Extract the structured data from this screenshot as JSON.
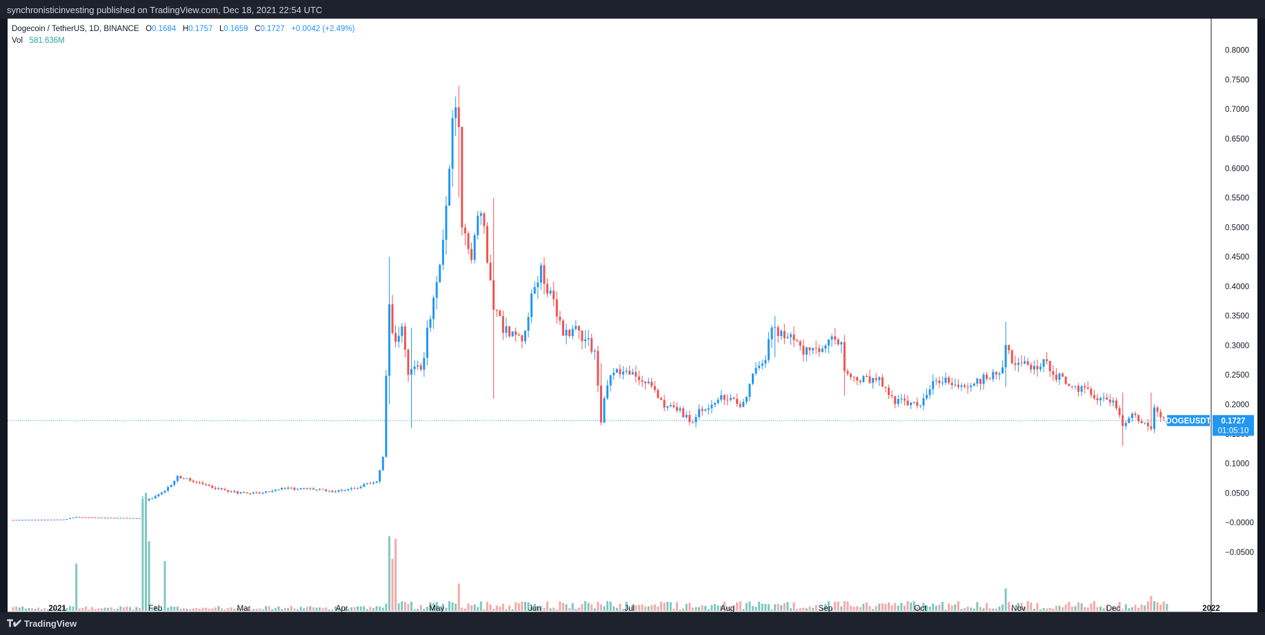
{
  "header": {
    "attribution": "synchronisticinvesting published on TradingView.com, Dec 18, 2021 22:54 UTC"
  },
  "legend": {
    "symbol": "Dogecoin / TetherUS, 1D, BINANCE",
    "open_label": "O",
    "open": "0.1684",
    "high_label": "H",
    "high": "0.1757",
    "low_label": "L",
    "low": "0.1659",
    "close_label": "C",
    "close": "0.1727",
    "change": "+0.0042 (+2.49%)",
    "vol_label": "Vol",
    "vol": "581.636M"
  },
  "price_tag": {
    "ticker": "DOGEUSDT",
    "price": "0.1727",
    "countdown": "01:05:10"
  },
  "footer": {
    "logo_text": "TradingView"
  },
  "colors": {
    "up": "#26a69a",
    "up_candle": "#2196f3",
    "down": "#ef5350",
    "up_volume": "#7fc8c0",
    "down_volume": "#f4a9a8",
    "last_price": "#2196f3",
    "background": "#ffffff",
    "frame": "#131722"
  },
  "chart_data": {
    "type": "candlestick",
    "interval": "1D",
    "symbol": "DOGEUSDT",
    "y_axis": {
      "min": -0.07,
      "max": 0.83,
      "ticks": [
        0.8,
        0.75,
        0.7,
        0.65,
        0.6,
        0.55,
        0.5,
        0.45,
        0.4,
        0.35,
        0.3,
        0.25,
        0.2,
        0.15,
        0.1,
        0.05,
        0.0,
        -0.05
      ],
      "tick_labels": [
        "0.8000",
        "0.7500",
        "0.7000",
        "0.6500",
        "0.6000",
        "0.5500",
        "0.5000",
        "0.4500",
        "0.4000",
        "0.3500",
        "0.3000",
        "0.2500",
        "0.2000",
        "0.1500",
        "0.1000",
        "0.0500",
        "−0.0000",
        "−0.0500"
      ]
    },
    "x_axis": {
      "start": "2020-12-18",
      "end": "2022-01-01",
      "labels": [
        {
          "date": "2021-01-01",
          "text": "2021"
        },
        {
          "date": "2021-02-01",
          "text": "Feb"
        },
        {
          "date": "2021-03-01",
          "text": "Mar"
        },
        {
          "date": "2021-04-01",
          "text": "Apr"
        },
        {
          "date": "2021-05-01",
          "text": "May"
        },
        {
          "date": "2021-06-01",
          "text": "Jun"
        },
        {
          "date": "2021-07-01",
          "text": "Jul"
        },
        {
          "date": "2021-08-01",
          "text": "Aug"
        },
        {
          "date": "2021-09-01",
          "text": "Sep"
        },
        {
          "date": "2021-10-01",
          "text": "Oct"
        },
        {
          "date": "2021-11-01",
          "text": "Nov"
        },
        {
          "date": "2021-12-01",
          "text": "Dec"
        },
        {
          "date": "2022-01-01",
          "text": "2022"
        }
      ]
    },
    "last_price": 0.1727,
    "grid": false,
    "series_close_path": [
      {
        "date": "2020-12-18",
        "close": 0.0045
      },
      {
        "date": "2020-12-27",
        "close": 0.0048
      },
      {
        "date": "2021-01-03",
        "close": 0.0052
      },
      {
        "date": "2021-01-07",
        "close": 0.0095
      },
      {
        "date": "2021-01-15",
        "close": 0.0082
      },
      {
        "date": "2021-01-27",
        "close": 0.0074
      },
      {
        "date": "2021-01-28",
        "close": 0.032
      },
      {
        "date": "2021-01-29",
        "close": 0.038
      },
      {
        "date": "2021-02-04",
        "close": 0.053
      },
      {
        "date": "2021-02-08",
        "close": 0.078
      },
      {
        "date": "2021-02-12",
        "close": 0.071
      },
      {
        "date": "2021-02-20",
        "close": 0.058
      },
      {
        "date": "2021-02-27",
        "close": 0.051
      },
      {
        "date": "2021-03-06",
        "close": 0.05
      },
      {
        "date": "2021-03-14",
        "close": 0.058
      },
      {
        "date": "2021-03-22",
        "close": 0.057
      },
      {
        "date": "2021-03-30",
        "close": 0.053
      },
      {
        "date": "2021-04-06",
        "close": 0.06
      },
      {
        "date": "2021-04-12",
        "close": 0.07
      },
      {
        "date": "2021-04-14",
        "close": 0.11
      },
      {
        "date": "2021-04-16",
        "close": 0.37
      },
      {
        "date": "2021-04-18",
        "close": 0.3
      },
      {
        "date": "2021-04-20",
        "close": 0.34
      },
      {
        "date": "2021-04-22",
        "close": 0.25
      },
      {
        "date": "2021-04-24",
        "close": 0.27
      },
      {
        "date": "2021-04-26",
        "close": 0.26
      },
      {
        "date": "2021-04-28",
        "close": 0.32
      },
      {
        "date": "2021-05-01",
        "close": 0.4
      },
      {
        "date": "2021-05-04",
        "close": 0.53
      },
      {
        "date": "2021-05-06",
        "close": 0.67
      },
      {
        "date": "2021-05-07",
        "close": 0.69
      },
      {
        "date": "2021-05-08",
        "close": 0.65
      },
      {
        "date": "2021-05-09",
        "close": 0.5
      },
      {
        "date": "2021-05-12",
        "close": 0.45
      },
      {
        "date": "2021-05-14",
        "close": 0.52
      },
      {
        "date": "2021-05-16",
        "close": 0.5
      },
      {
        "date": "2021-05-19",
        "close": 0.37
      },
      {
        "date": "2021-05-22",
        "close": 0.33
      },
      {
        "date": "2021-05-25",
        "close": 0.32
      },
      {
        "date": "2021-05-28",
        "close": 0.31
      },
      {
        "date": "2021-06-01",
        "close": 0.4
      },
      {
        "date": "2021-06-03",
        "close": 0.43
      },
      {
        "date": "2021-06-06",
        "close": 0.38
      },
      {
        "date": "2021-06-10",
        "close": 0.32
      },
      {
        "date": "2021-06-14",
        "close": 0.33
      },
      {
        "date": "2021-06-18",
        "close": 0.31
      },
      {
        "date": "2021-06-20",
        "close": 0.29
      },
      {
        "date": "2021-06-22",
        "close": 0.17
      },
      {
        "date": "2021-06-24",
        "close": 0.24
      },
      {
        "date": "2021-06-27",
        "close": 0.26
      },
      {
        "date": "2021-07-02",
        "close": 0.25
      },
      {
        "date": "2021-07-08",
        "close": 0.23
      },
      {
        "date": "2021-07-12",
        "close": 0.2
      },
      {
        "date": "2021-07-17",
        "close": 0.19
      },
      {
        "date": "2021-07-20",
        "close": 0.17
      },
      {
        "date": "2021-07-24",
        "close": 0.19
      },
      {
        "date": "2021-07-30",
        "close": 0.21
      },
      {
        "date": "2021-08-06",
        "close": 0.2
      },
      {
        "date": "2021-08-09",
        "close": 0.25
      },
      {
        "date": "2021-08-13",
        "close": 0.28
      },
      {
        "date": "2021-08-15",
        "close": 0.33
      },
      {
        "date": "2021-08-17",
        "close": 0.31
      },
      {
        "date": "2021-08-20",
        "close": 0.32
      },
      {
        "date": "2021-08-25",
        "close": 0.29
      },
      {
        "date": "2021-08-30",
        "close": 0.29
      },
      {
        "date": "2021-09-03",
        "close": 0.31
      },
      {
        "date": "2021-09-06",
        "close": 0.3
      },
      {
        "date": "2021-09-07",
        "close": 0.25
      },
      {
        "date": "2021-09-12",
        "close": 0.24
      },
      {
        "date": "2021-09-18",
        "close": 0.24
      },
      {
        "date": "2021-09-22",
        "close": 0.21
      },
      {
        "date": "2021-09-28",
        "close": 0.2
      },
      {
        "date": "2021-10-01",
        "close": 0.2
      },
      {
        "date": "2021-10-06",
        "close": 0.24
      },
      {
        "date": "2021-10-10",
        "close": 0.24
      },
      {
        "date": "2021-10-14",
        "close": 0.23
      },
      {
        "date": "2021-10-20",
        "close": 0.24
      },
      {
        "date": "2021-10-24",
        "close": 0.25
      },
      {
        "date": "2021-10-27",
        "close": 0.26
      },
      {
        "date": "2021-10-28",
        "close": 0.3
      },
      {
        "date": "2021-10-31",
        "close": 0.27
      },
      {
        "date": "2021-11-05",
        "close": 0.26
      },
      {
        "date": "2021-11-09",
        "close": 0.27
      },
      {
        "date": "2021-11-13",
        "close": 0.25
      },
      {
        "date": "2021-11-18",
        "close": 0.23
      },
      {
        "date": "2021-11-23",
        "close": 0.22
      },
      {
        "date": "2021-11-27",
        "close": 0.21
      },
      {
        "date": "2021-11-30",
        "close": 0.21
      },
      {
        "date": "2021-12-04",
        "close": 0.17
      },
      {
        "date": "2021-12-07",
        "close": 0.18
      },
      {
        "date": "2021-12-11",
        "close": 0.17
      },
      {
        "date": "2021-12-13",
        "close": 0.16
      },
      {
        "date": "2021-12-14",
        "close": 0.19
      },
      {
        "date": "2021-12-18",
        "close": 0.1727
      }
    ],
    "spikes": [
      {
        "date": "2021-01-28",
        "high": 0.045,
        "low": 0.0074
      },
      {
        "date": "2021-04-16",
        "high": 0.45,
        "low": 0.2
      },
      {
        "date": "2021-04-23",
        "high": 0.33,
        "low": 0.16
      },
      {
        "date": "2021-05-08",
        "high": 0.74,
        "low": 0.55
      },
      {
        "date": "2021-05-19",
        "high": 0.55,
        "low": 0.21
      },
      {
        "date": "2021-06-22",
        "high": 0.27,
        "low": 0.165
      },
      {
        "date": "2021-07-20",
        "high": 0.19,
        "low": 0.165
      },
      {
        "date": "2021-08-16",
        "high": 0.35,
        "low": 0.28
      },
      {
        "date": "2021-09-07",
        "high": 0.31,
        "low": 0.215
      },
      {
        "date": "2021-10-28",
        "high": 0.34,
        "low": 0.23
      },
      {
        "date": "2021-12-04",
        "high": 0.22,
        "low": 0.13
      },
      {
        "date": "2021-12-13",
        "high": 0.22,
        "low": 0.155
      }
    ],
    "volume": {
      "label": "Vol",
      "last": "581.636M",
      "max_ratio_events": [
        {
          "date": "2021-01-07",
          "ratio": 0.38
        },
        {
          "date": "2021-01-28",
          "ratio": 0.9
        },
        {
          "date": "2021-01-29",
          "ratio": 0.95
        },
        {
          "date": "2021-01-30",
          "ratio": 0.56
        },
        {
          "date": "2021-02-04",
          "ratio": 0.4
        },
        {
          "date": "2021-04-16",
          "ratio": 0.6
        },
        {
          "date": "2021-04-17",
          "ratio": 0.42
        },
        {
          "date": "2021-04-18",
          "ratio": 0.58
        },
        {
          "date": "2021-05-08",
          "ratio": 0.22
        },
        {
          "date": "2021-10-28",
          "ratio": 0.18
        },
        {
          "date": "2021-12-13",
          "ratio": 0.12
        }
      ]
    }
  }
}
